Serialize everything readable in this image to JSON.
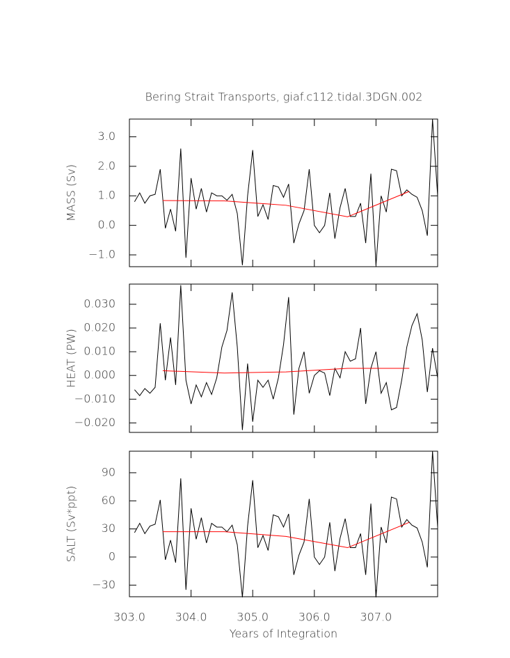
{
  "chart_data": [
    {
      "type": "line",
      "title": "Bering Strait Transports, giaf.c112.tidal.3DGN.002",
      "ylabel": "MASS (Sv)",
      "xlim": [
        303,
        308
      ],
      "xticks": [
        303,
        304,
        305,
        306,
        307
      ],
      "ylim": [
        -1.4,
        3.6
      ],
      "yticks": [
        {
          "value": -1,
          "label": "−1.0"
        },
        {
          "value": 0,
          "label": "0.0"
        },
        {
          "value": 1,
          "label": "1.0"
        },
        {
          "value": 2,
          "label": "2.0"
        },
        {
          "value": 3,
          "label": "3.0"
        }
      ],
      "series": [
        {
          "color": "#000000",
          "x": [
            303.083,
            303.167,
            303.25,
            303.333,
            303.417,
            303.5,
            303.583,
            303.667,
            303.75,
            303.833,
            303.917,
            304.0,
            304.083,
            304.167,
            304.25,
            304.333,
            304.417,
            304.5,
            304.583,
            304.667,
            304.75,
            304.833,
            304.917,
            305.0,
            305.083,
            305.167,
            305.25,
            305.333,
            305.417,
            305.5,
            305.583,
            305.667,
            305.75,
            305.833,
            305.917,
            306.0,
            306.083,
            306.167,
            306.25,
            306.333,
            306.417,
            306.5,
            306.583,
            306.667,
            306.75,
            306.833,
            306.917,
            307.0,
            307.083,
            307.167,
            307.25,
            307.333,
            307.417,
            307.5,
            307.583,
            307.667,
            307.75,
            307.833,
            307.917,
            308.0
          ],
          "values": [
            0.8,
            1.1,
            0.75,
            1.0,
            1.05,
            1.9,
            -0.1,
            0.55,
            -0.2,
            2.6,
            -1.1,
            1.6,
            0.55,
            1.25,
            0.45,
            1.1,
            1.0,
            1.0,
            0.85,
            1.05,
            0.4,
            -1.35,
            1.0,
            2.55,
            0.3,
            0.7,
            0.2,
            1.35,
            1.3,
            0.95,
            1.4,
            -0.6,
            0.05,
            0.5,
            1.9,
            0.0,
            -0.25,
            0.0,
            1.1,
            -0.45,
            0.6,
            1.25,
            0.3,
            0.3,
            0.75,
            -0.6,
            1.75,
            -1.35,
            1.0,
            0.45,
            1.9,
            1.85,
            1.0,
            1.2,
            1.05,
            0.95,
            0.5,
            -0.35,
            3.6,
            1.0
          ]
        },
        {
          "color": "#ff0000",
          "x": [
            303.54,
            304.54,
            305.54,
            306.54,
            307.54
          ],
          "values": [
            0.84,
            0.83,
            0.68,
            0.29,
            1.15
          ]
        }
      ]
    },
    {
      "type": "line",
      "ylabel": "HEAT (PW)",
      "xlim": [
        303,
        308
      ],
      "xticks": [
        303,
        304,
        305,
        306,
        307
      ],
      "ylim": [
        -0.024,
        0.0385
      ],
      "yticks": [
        {
          "value": -0.02,
          "label": "−0.020"
        },
        {
          "value": -0.01,
          "label": "−0.010"
        },
        {
          "value": 0,
          "label": "0.000"
        },
        {
          "value": 0.01,
          "label": "0.010"
        },
        {
          "value": 0.02,
          "label": "0.020"
        },
        {
          "value": 0.03,
          "label": "0.030"
        }
      ],
      "series": [
        {
          "color": "#000000",
          "x": [
            303.083,
            303.167,
            303.25,
            303.333,
            303.417,
            303.5,
            303.583,
            303.667,
            303.75,
            303.833,
            303.917,
            304.0,
            304.083,
            304.167,
            304.25,
            304.333,
            304.417,
            304.5,
            304.583,
            304.667,
            304.75,
            304.833,
            304.917,
            305.0,
            305.083,
            305.167,
            305.25,
            305.333,
            305.417,
            305.5,
            305.583,
            305.667,
            305.75,
            305.833,
            305.917,
            306.0,
            306.083,
            306.167,
            306.25,
            306.333,
            306.417,
            306.5,
            306.583,
            306.667,
            306.75,
            306.833,
            306.917,
            307.0,
            307.083,
            307.167,
            307.25,
            307.333,
            307.417,
            307.5,
            307.583,
            307.667,
            307.75,
            307.833,
            307.917,
            308.0
          ],
          "values": [
            -0.006,
            -0.0085,
            -0.0055,
            -0.0075,
            -0.005,
            0.022,
            -0.002,
            0.016,
            -0.004,
            0.038,
            -0.002,
            -0.012,
            -0.004,
            -0.009,
            -0.003,
            -0.008,
            -0.001,
            0.012,
            0.019,
            0.035,
            0.012,
            -0.023,
            0.005,
            -0.0195,
            -0.002,
            -0.005,
            -0.002,
            -0.01,
            -0.001,
            0.013,
            0.033,
            -0.0165,
            0.003,
            0.01,
            -0.0075,
            0.0,
            0.002,
            0.001,
            -0.0085,
            0.003,
            -0.001,
            0.01,
            0.006,
            0.007,
            0.02,
            -0.012,
            0.003,
            0.01,
            -0.0075,
            -0.003,
            -0.0145,
            -0.0135,
            -0.002,
            0.012,
            0.021,
            0.026,
            0.015,
            -0.007,
            0.0115,
            -0.001
          ]
        },
        {
          "color": "#ff0000",
          "x": [
            303.54,
            304.54,
            305.54,
            306.54,
            307.54
          ],
          "values": [
            0.002,
            0.001,
            0.0015,
            0.003,
            0.003
          ]
        }
      ]
    },
    {
      "type": "line",
      "ylabel": "SALT (Sv*ppt)",
      "xlabel": "Years of Integration",
      "xlim": [
        303,
        308
      ],
      "xticks": [
        {
          "value": 303,
          "label": "303.0"
        },
        {
          "value": 304,
          "label": "304.0"
        },
        {
          "value": 305,
          "label": "305.0"
        },
        {
          "value": 306,
          "label": "306.0"
        },
        {
          "value": 307,
          "label": "307.0"
        }
      ],
      "ylim": [
        -42.4,
        113
      ],
      "yticks": [
        {
          "value": -30,
          "label": "−30"
        },
        0,
        30,
        60,
        90
      ],
      "series": [
        {
          "color": "#000000",
          "x": [
            303.083,
            303.167,
            303.25,
            303.333,
            303.417,
            303.5,
            303.583,
            303.667,
            303.75,
            303.833,
            303.917,
            304.0,
            304.083,
            304.167,
            304.25,
            304.333,
            304.417,
            304.5,
            304.583,
            304.667,
            304.75,
            304.833,
            304.917,
            305.0,
            305.083,
            305.167,
            305.25,
            305.333,
            305.417,
            305.5,
            305.583,
            305.667,
            305.75,
            305.833,
            305.917,
            306.0,
            306.083,
            306.167,
            306.25,
            306.333,
            306.417,
            306.5,
            306.583,
            306.667,
            306.75,
            306.833,
            306.917,
            307.0,
            307.083,
            307.167,
            307.25,
            307.333,
            307.417,
            307.5,
            307.583,
            307.667,
            307.75,
            307.833,
            307.917,
            308.0
          ],
          "values": [
            26,
            36,
            25,
            33,
            35,
            61,
            -3,
            18,
            -6,
            84,
            -35,
            52,
            19,
            42,
            15,
            36,
            32,
            32,
            27,
            34,
            13,
            -43,
            33,
            82,
            10,
            23,
            7,
            45,
            43,
            32,
            46,
            -19,
            2,
            16,
            62,
            0,
            -8,
            0,
            37,
            -15,
            20,
            41,
            10,
            10,
            25,
            -19,
            57,
            -43,
            32,
            15,
            64,
            62,
            32,
            40,
            34,
            31,
            16,
            -11,
            113,
            32
          ]
        },
        {
          "color": "#ff0000",
          "x": [
            303.54,
            304.54,
            305.54,
            306.54,
            307.54
          ],
          "values": [
            27,
            27,
            22,
            10,
            37
          ]
        }
      ]
    }
  ]
}
